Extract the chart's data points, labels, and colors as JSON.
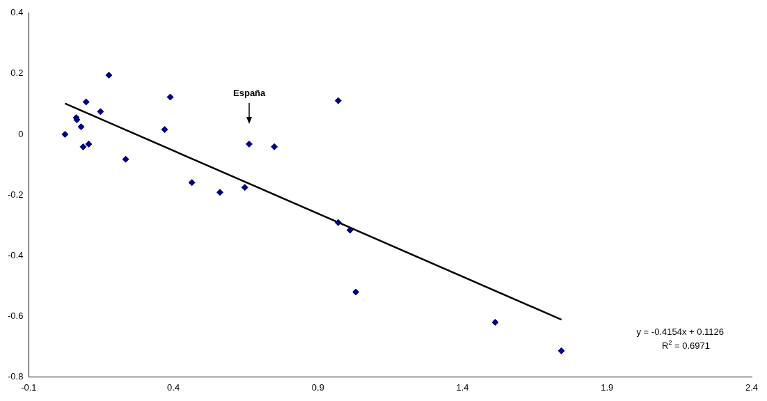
{
  "chart_data": {
    "type": "scatter",
    "xlim": [
      -0.1,
      2.4
    ],
    "ylim": [
      -0.8,
      0.4
    ],
    "xticks": [
      -0.1,
      0.4,
      0.9,
      1.4,
      1.9,
      2.4
    ],
    "yticks": [
      -0.8,
      -0.6,
      -0.4,
      -0.2,
      0,
      0.2,
      0.4
    ],
    "grid": false,
    "legend": false,
    "marker": "diamond",
    "series": [
      {
        "type": "scatter",
        "color": "#000080",
        "x": [
          0.025,
          0.064,
          0.066,
          0.081,
          0.098,
          0.088,
          0.107,
          0.148,
          0.177,
          0.235,
          0.37,
          0.389,
          0.464,
          0.561,
          0.647,
          0.662,
          0.749,
          0.97,
          0.97,
          1.011,
          1.031,
          1.513,
          1.742
        ],
        "values": [
          0.0,
          0.055,
          0.048,
          0.025,
          0.107,
          -0.041,
          -0.032,
          0.075,
          0.195,
          -0.082,
          0.016,
          0.123,
          -0.159,
          -0.191,
          -0.175,
          -0.032,
          -0.041,
          0.111,
          -0.291,
          -0.316,
          -0.52,
          -0.62,
          -0.714
        ]
      },
      {
        "type": "line",
        "color": "#000000",
        "marker": "none",
        "x": [
          0.025,
          1.742
        ],
        "values": [
          0.102,
          -0.611
        ]
      }
    ],
    "annotations": [
      "España",
      "y = -0.4154x + 0.1126",
      "R$^{2}$ = 0.6971"
    ]
  }
}
